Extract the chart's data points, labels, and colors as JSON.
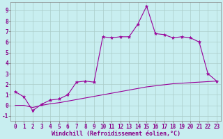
{
  "x": [
    0,
    1,
    2,
    3,
    4,
    5,
    6,
    7,
    8,
    9,
    10,
    11,
    12,
    13,
    14,
    15,
    16,
    17,
    18,
    19,
    20,
    21,
    22,
    23
  ],
  "y_upper": [
    1.3,
    0.8,
    -0.5,
    0.1,
    0.5,
    0.6,
    1.0,
    2.2,
    2.3,
    2.2,
    6.5,
    6.4,
    6.5,
    6.5,
    7.7,
    9.4,
    6.8,
    6.7,
    6.4,
    6.5,
    6.4,
    6.0,
    3.0,
    2.3
  ],
  "y_lower": [
    0.0,
    0.0,
    -0.2,
    0.0,
    0.15,
    0.25,
    0.4,
    0.55,
    0.7,
    0.85,
    1.0,
    1.15,
    1.3,
    1.45,
    1.6,
    1.75,
    1.85,
    1.95,
    2.05,
    2.1,
    2.15,
    2.2,
    2.25,
    2.3
  ],
  "line_color": "#990099",
  "background_color": "#c8eef0",
  "grid_color": "#aaccc8",
  "xlabel": "Windchill (Refroidissement éolien,°C)",
  "ylim": [
    -1.5,
    9.8
  ],
  "xlim": [
    -0.5,
    23.5
  ],
  "yticks": [
    -1,
    0,
    1,
    2,
    3,
    4,
    5,
    6,
    7,
    8,
    9
  ],
  "xticks": [
    0,
    1,
    2,
    3,
    4,
    5,
    6,
    7,
    8,
    9,
    10,
    11,
    12,
    13,
    14,
    15,
    16,
    17,
    18,
    19,
    20,
    21,
    22,
    23
  ],
  "tick_fontsize": 5.5,
  "xlabel_fontsize": 6.0
}
